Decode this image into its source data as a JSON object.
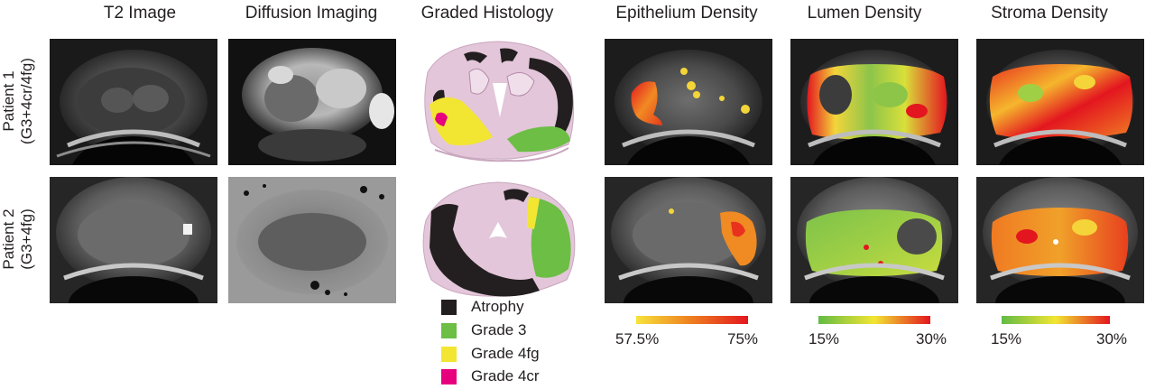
{
  "columns": {
    "t2": "T2 Image",
    "diffusion": "Diffusion Imaging",
    "histology": "Graded Histology",
    "epithelium": "Epithelium Density",
    "lumen": "Lumen Density",
    "stroma": "Stroma Density"
  },
  "rows": [
    {
      "name": "Patient 1",
      "grade": "(G3+4cr/4fg)"
    },
    {
      "name": "Patient 2",
      "grade": "(G3+4fg)"
    }
  ],
  "legend": [
    {
      "label": "Atrophy",
      "color": "#231f20"
    },
    {
      "label": "Grade 3",
      "color": "#6cbe45"
    },
    {
      "label": "Grade 4fg",
      "color": "#f2e632"
    },
    {
      "label": "Grade 4cr",
      "color": "#e6007e"
    }
  ],
  "colorbars": [
    {
      "min": "57.5%",
      "max": "75%",
      "colors": [
        "#f7e33b",
        "#ee7d1f",
        "#e3161f"
      ]
    },
    {
      "min": "15%",
      "max": "30%",
      "colors": [
        "#63bb46",
        "#f2e632",
        "#e3161f"
      ]
    },
    {
      "min": "15%",
      "max": "30%",
      "colors": [
        "#63bb46",
        "#f2e632",
        "#e3161f"
      ]
    }
  ]
}
